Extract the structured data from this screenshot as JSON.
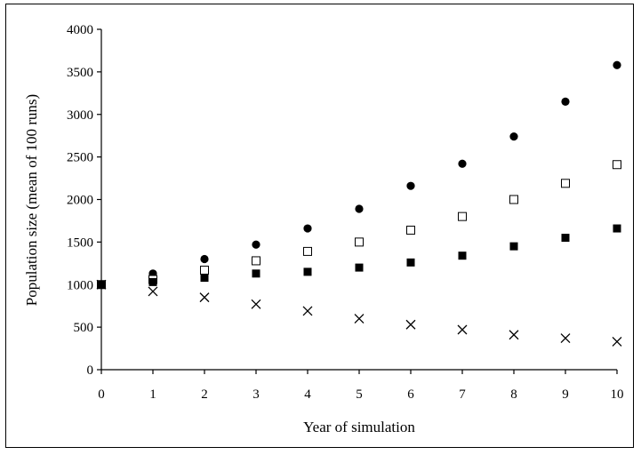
{
  "chart_data": {
    "type": "scatter",
    "title": "",
    "xlabel": "Year of simulation",
    "ylabel": "Population size (mean of 100 runs)",
    "xlim": [
      0,
      10
    ],
    "ylim": [
      0,
      4000
    ],
    "x_ticks": [
      "0",
      "1",
      "2",
      "3",
      "4",
      "5",
      "6",
      "7",
      "8",
      "9",
      "10"
    ],
    "y_ticks": [
      "0",
      "500",
      "1000",
      "1500",
      "2000",
      "2500",
      "3000",
      "3500",
      "4000"
    ],
    "grid": false,
    "legend": "none",
    "x": [
      0,
      1,
      2,
      3,
      4,
      5,
      6,
      7,
      8,
      9,
      10
    ],
    "series": [
      {
        "marker": "filled-circle",
        "values": [
          1000,
          1130,
          1300,
          1470,
          1660,
          1890,
          2160,
          2420,
          2740,
          3150,
          3580
        ]
      },
      {
        "marker": "open-square",
        "values": [
          1000,
          1060,
          1170,
          1280,
          1390,
          1500,
          1640,
          1800,
          2000,
          2190,
          2410
        ]
      },
      {
        "marker": "filled-square",
        "values": [
          1000,
          1030,
          1080,
          1130,
          1150,
          1200,
          1260,
          1340,
          1450,
          1550,
          1660
        ]
      },
      {
        "marker": "cross",
        "values": [
          1000,
          920,
          850,
          770,
          690,
          600,
          530,
          470,
          410,
          370,
          330
        ]
      }
    ]
  }
}
